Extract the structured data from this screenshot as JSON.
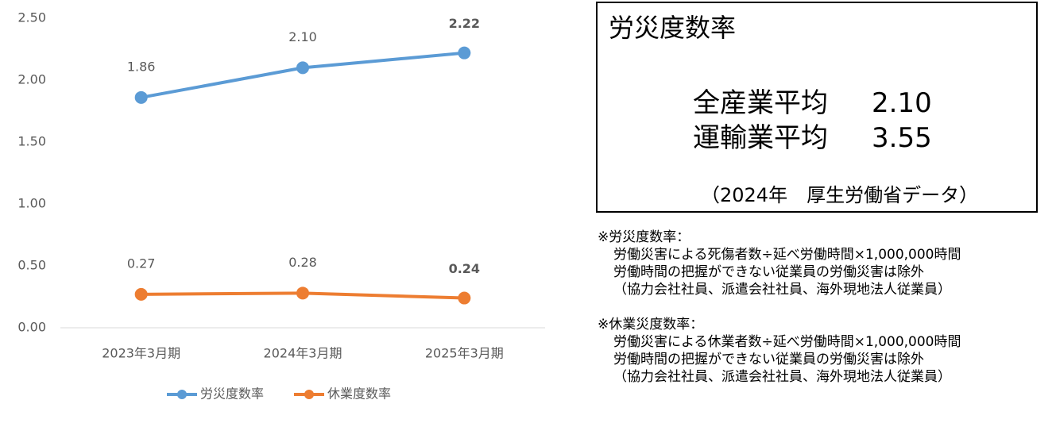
{
  "chart_data": {
    "type": "line",
    "categories": [
      "2023年3月期",
      "2024年3月期",
      "2025年3月期"
    ],
    "series": [
      {
        "name": "労災度数率",
        "color": "#5b9bd5",
        "values": [
          1.86,
          2.1,
          2.22
        ],
        "value_labels": [
          "1.86",
          "2.10",
          "2.22"
        ]
      },
      {
        "name": "休業度数率",
        "color": "#ed7d31",
        "values": [
          0.27,
          0.28,
          0.24
        ],
        "value_labels": [
          "0.27",
          "0.28",
          "0.24"
        ]
      }
    ],
    "ylim": [
      0,
      2.5
    ],
    "yticks": [
      {
        "value": 0,
        "label": "0.00"
      },
      {
        "value": 0.5,
        "label": "0.50"
      },
      {
        "value": 1,
        "label": "1.00"
      },
      {
        "value": 1.5,
        "label": "1.50"
      },
      {
        "value": 2,
        "label": "2.00"
      },
      {
        "value": 2.5,
        "label": "2.50"
      }
    ],
    "legend": "bottom"
  },
  "panel": {
    "title": "労災度数率",
    "rows": [
      [
        "全産業平均",
        "2.10"
      ],
      [
        "運輸業平均",
        "3.55"
      ]
    ],
    "source": "（2024年　厚生労働省データ）"
  },
  "notes": [
    [
      "※労災度数率：",
      "労働災害による死傷者数÷延べ労働時間×1,000,000時間",
      "労働時間の把握ができない従業員の労働災害は除外",
      "（協力会社社員、派遣会社社員、海外現地法人従業員）"
    ],
    [
      "※休業災度数率：",
      "労働災害による休業者数÷延べ労働時間×1,000,000時間",
      "労働時間の把握ができない従業員の労働災害は除外",
      "（協力会社社員、派遣会社社員、海外現地法人従業員）"
    ]
  ]
}
